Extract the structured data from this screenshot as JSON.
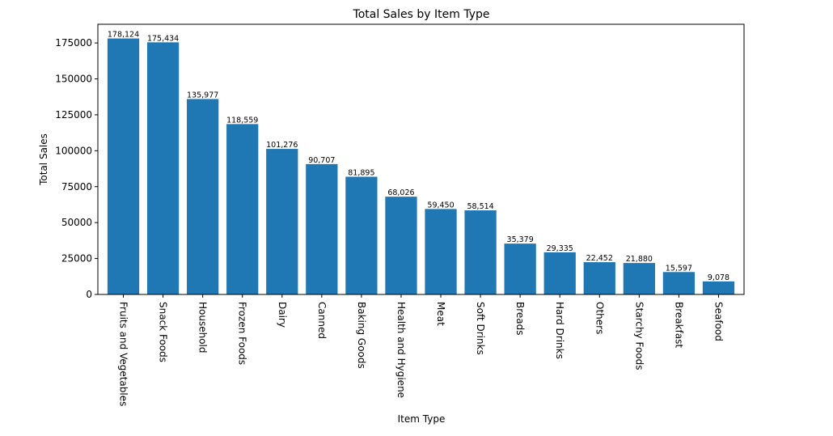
{
  "chart_data": {
    "type": "bar",
    "title": "Total Sales by Item Type",
    "xlabel": "Item Type",
    "ylabel": "Total Sales",
    "ylim": [
      0,
      188000
    ],
    "yticks": [
      0,
      25000,
      50000,
      75000,
      100000,
      125000,
      150000,
      175000
    ],
    "categories": [
      "Fruits and Vegetables",
      "Snack Foods",
      "Household",
      "Frozen Foods",
      "Dairy",
      "Canned",
      "Baking Goods",
      "Health and Hygiene",
      "Meat",
      "Soft Drinks",
      "Breads",
      "Hard Drinks",
      "Others",
      "Starchy Foods",
      "Breakfast",
      "Seafood"
    ],
    "values": [
      178124,
      175434,
      135977,
      118559,
      101276,
      90707,
      81895,
      68026,
      59450,
      58514,
      35379,
      29335,
      22452,
      21880,
      15597,
      9078
    ],
    "value_labels": [
      "178,124",
      "175,434",
      "135,977",
      "118,559",
      "101,276",
      "90,707",
      "81,895",
      "68,026",
      "59,450",
      "58,514",
      "35,379",
      "29,335",
      "22,452",
      "21,880",
      "15,597",
      "9,078"
    ],
    "bar_color": "#1f77b4",
    "grid": false,
    "x_tick_rotation": "vertical"
  }
}
